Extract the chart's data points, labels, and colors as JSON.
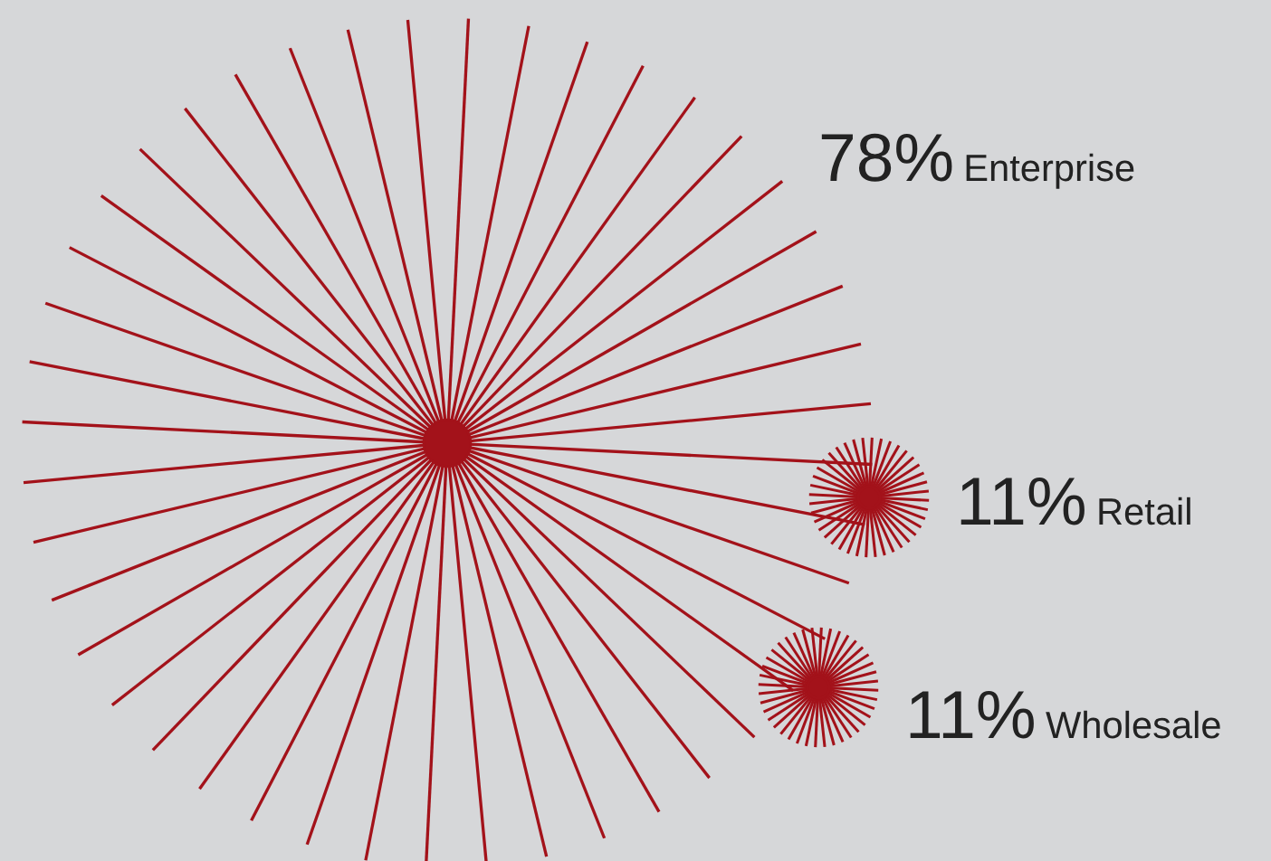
{
  "chart_data": {
    "type": "other",
    "categories": [
      "Enterprise",
      "Retail",
      "Wholesale"
    ],
    "values": [
      78,
      11,
      11
    ],
    "value_labels": [
      "78%",
      "11%",
      "11%"
    ],
    "color": "#a3121a"
  }
}
